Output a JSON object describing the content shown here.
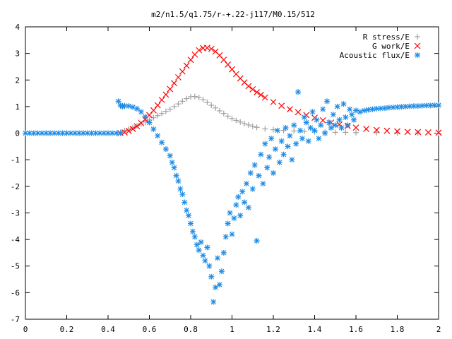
{
  "chart_data": {
    "type": "scatter",
    "title": "m2/n1.5/q1.75/r-+.22-j117/M0.15/512",
    "xlabel": "",
    "ylabel": "",
    "xlim": [
      0,
      2
    ],
    "ylim": [
      -7,
      4
    ],
    "xticks": [
      "0",
      "0.2",
      "0.4",
      "0.6",
      "0.8",
      "1",
      "1.2",
      "1.4",
      "1.6",
      "1.8",
      "2"
    ],
    "yticks": [
      "4",
      "3",
      "2",
      "1",
      "0",
      "-1",
      "-2",
      "-3",
      "-4",
      "-5",
      "-6",
      "-7"
    ],
    "grid": false,
    "legend_position": "top-right",
    "series": [
      {
        "name": "R stress/E",
        "marker": "plus",
        "color": "#a0a0a0",
        "points": [
          [
            0.46,
            0.03
          ],
          [
            0.48,
            0.1
          ],
          [
            0.5,
            0.16
          ],
          [
            0.52,
            0.22
          ],
          [
            0.54,
            0.28
          ],
          [
            0.56,
            0.35
          ],
          [
            0.58,
            0.42
          ],
          [
            0.6,
            0.5
          ],
          [
            0.62,
            0.58
          ],
          [
            0.64,
            0.66
          ],
          [
            0.66,
            0.74
          ],
          [
            0.68,
            0.82
          ],
          [
            0.7,
            0.9
          ],
          [
            0.72,
            1.0
          ],
          [
            0.74,
            1.1
          ],
          [
            0.76,
            1.2
          ],
          [
            0.78,
            1.3
          ],
          [
            0.8,
            1.37
          ],
          [
            0.82,
            1.38
          ],
          [
            0.84,
            1.34
          ],
          [
            0.86,
            1.26
          ],
          [
            0.88,
            1.16
          ],
          [
            0.9,
            1.05
          ],
          [
            0.92,
            0.95
          ],
          [
            0.94,
            0.84
          ],
          [
            0.96,
            0.74
          ],
          [
            0.98,
            0.64
          ],
          [
            1.0,
            0.55
          ],
          [
            1.02,
            0.48
          ],
          [
            1.04,
            0.42
          ],
          [
            1.06,
            0.36
          ],
          [
            1.08,
            0.31
          ],
          [
            1.1,
            0.26
          ],
          [
            1.12,
            0.22
          ],
          [
            1.16,
            0.16
          ],
          [
            1.2,
            0.13
          ],
          [
            1.25,
            0.1
          ],
          [
            1.3,
            0.08
          ],
          [
            1.35,
            0.07
          ],
          [
            1.4,
            0.05
          ],
          [
            1.45,
            0.04
          ],
          [
            1.5,
            0.03
          ],
          [
            1.55,
            0.03
          ],
          [
            1.6,
            0.02
          ],
          [
            1.7,
            0.02
          ],
          [
            1.8,
            0.01
          ],
          [
            1.9,
            0.01
          ],
          [
            2.0,
            0.0
          ]
        ]
      },
      {
        "name": "G work/E",
        "marker": "cross",
        "color": "#ff0000",
        "points": [
          [
            0.46,
            0.0
          ],
          [
            0.48,
            0.03
          ],
          [
            0.5,
            0.08
          ],
          [
            0.52,
            0.16
          ],
          [
            0.54,
            0.26
          ],
          [
            0.56,
            0.38
          ],
          [
            0.58,
            0.52
          ],
          [
            0.6,
            0.68
          ],
          [
            0.62,
            0.86
          ],
          [
            0.64,
            1.05
          ],
          [
            0.66,
            1.25
          ],
          [
            0.68,
            1.45
          ],
          [
            0.7,
            1.66
          ],
          [
            0.72,
            1.88
          ],
          [
            0.74,
            2.1
          ],
          [
            0.76,
            2.32
          ],
          [
            0.78,
            2.54
          ],
          [
            0.8,
            2.76
          ],
          [
            0.82,
            2.96
          ],
          [
            0.84,
            3.12
          ],
          [
            0.86,
            3.2
          ],
          [
            0.88,
            3.21
          ],
          [
            0.9,
            3.17
          ],
          [
            0.92,
            3.07
          ],
          [
            0.94,
            2.93
          ],
          [
            0.96,
            2.76
          ],
          [
            0.98,
            2.58
          ],
          [
            1.0,
            2.4
          ],
          [
            1.02,
            2.22
          ],
          [
            1.04,
            2.06
          ],
          [
            1.06,
            1.91
          ],
          [
            1.08,
            1.77
          ],
          [
            1.1,
            1.65
          ],
          [
            1.12,
            1.54
          ],
          [
            1.14,
            1.44
          ],
          [
            1.16,
            1.34
          ],
          [
            1.2,
            1.17
          ],
          [
            1.24,
            1.03
          ],
          [
            1.28,
            0.9
          ],
          [
            1.32,
            0.79
          ],
          [
            1.36,
            0.68
          ],
          [
            1.4,
            0.58
          ],
          [
            1.44,
            0.48
          ],
          [
            1.48,
            0.4
          ],
          [
            1.52,
            0.33
          ],
          [
            1.56,
            0.27
          ],
          [
            1.6,
            0.21
          ],
          [
            1.65,
            0.16
          ],
          [
            1.7,
            0.12
          ],
          [
            1.75,
            0.09
          ],
          [
            1.8,
            0.07
          ],
          [
            1.85,
            0.05
          ],
          [
            1.9,
            0.04
          ],
          [
            1.95,
            0.03
          ],
          [
            2.0,
            0.02
          ]
        ]
      },
      {
        "name": "Acoustic flux/E",
        "marker": "star",
        "color": "#1e8ce6",
        "points": [
          [
            0.0,
            0.0
          ],
          [
            0.02,
            0.0
          ],
          [
            0.04,
            0.0
          ],
          [
            0.06,
            0.0
          ],
          [
            0.08,
            0.0
          ],
          [
            0.1,
            0.0
          ],
          [
            0.12,
            0.0
          ],
          [
            0.14,
            0.0
          ],
          [
            0.16,
            0.0
          ],
          [
            0.18,
            0.0
          ],
          [
            0.2,
            0.0
          ],
          [
            0.22,
            0.0
          ],
          [
            0.24,
            0.0
          ],
          [
            0.26,
            0.0
          ],
          [
            0.28,
            0.0
          ],
          [
            0.3,
            0.0
          ],
          [
            0.32,
            0.0
          ],
          [
            0.34,
            0.0
          ],
          [
            0.36,
            0.0
          ],
          [
            0.38,
            0.0
          ],
          [
            0.4,
            0.0
          ],
          [
            0.42,
            0.0
          ],
          [
            0.44,
            0.0
          ],
          [
            0.46,
            0.0
          ],
          [
            0.45,
            1.2
          ],
          [
            0.46,
            1.05
          ],
          [
            0.47,
            1.0
          ],
          [
            0.48,
            1.03
          ],
          [
            0.5,
            1.02
          ],
          [
            0.52,
            0.98
          ],
          [
            0.54,
            0.92
          ],
          [
            0.56,
            0.8
          ],
          [
            0.58,
            0.62
          ],
          [
            0.6,
            0.4
          ],
          [
            0.62,
            0.15
          ],
          [
            0.64,
            -0.1
          ],
          [
            0.66,
            -0.35
          ],
          [
            0.68,
            -0.6
          ],
          [
            0.7,
            -0.85
          ],
          [
            0.71,
            -1.1
          ],
          [
            0.72,
            -1.3
          ],
          [
            0.73,
            -1.6
          ],
          [
            0.74,
            -1.8
          ],
          [
            0.75,
            -2.1
          ],
          [
            0.76,
            -2.3
          ],
          [
            0.77,
            -2.6
          ],
          [
            0.78,
            -2.9
          ],
          [
            0.79,
            -3.1
          ],
          [
            0.8,
            -3.4
          ],
          [
            0.81,
            -3.7
          ],
          [
            0.82,
            -3.9
          ],
          [
            0.83,
            -4.2
          ],
          [
            0.84,
            -4.4
          ],
          [
            0.85,
            -4.1
          ],
          [
            0.86,
            -4.6
          ],
          [
            0.87,
            -4.8
          ],
          [
            0.88,
            -4.3
          ],
          [
            0.89,
            -5.0
          ],
          [
            0.9,
            -5.4
          ],
          [
            0.91,
            -6.35
          ],
          [
            0.92,
            -5.8
          ],
          [
            0.93,
            -4.7
          ],
          [
            0.94,
            -5.7
          ],
          [
            0.95,
            -5.2
          ],
          [
            0.96,
            -4.5
          ],
          [
            0.97,
            -3.9
          ],
          [
            0.98,
            -3.4
          ],
          [
            0.99,
            -3.0
          ],
          [
            1.0,
            -3.8
          ],
          [
            1.01,
            -3.2
          ],
          [
            1.02,
            -2.7
          ],
          [
            1.03,
            -2.4
          ],
          [
            1.04,
            -3.1
          ],
          [
            1.05,
            -2.2
          ],
          [
            1.06,
            -2.6
          ],
          [
            1.07,
            -1.9
          ],
          [
            1.08,
            -2.8
          ],
          [
            1.09,
            -1.5
          ],
          [
            1.1,
            -2.1
          ],
          [
            1.11,
            -1.2
          ],
          [
            1.12,
            -4.05
          ],
          [
            1.13,
            -1.6
          ],
          [
            1.14,
            -0.8
          ],
          [
            1.15,
            -1.9
          ],
          [
            1.16,
            -0.4
          ],
          [
            1.17,
            -1.3
          ],
          [
            1.18,
            -0.9
          ],
          [
            1.19,
            -0.2
          ],
          [
            1.2,
            -1.5
          ],
          [
            1.21,
            -0.6
          ],
          [
            1.22,
            0.1
          ],
          [
            1.23,
            -1.1
          ],
          [
            1.24,
            -0.3
          ],
          [
            1.25,
            -0.8
          ],
          [
            1.26,
            0.2
          ],
          [
            1.27,
            -0.5
          ],
          [
            1.28,
            -0.1
          ],
          [
            1.29,
            -1.0
          ],
          [
            1.3,
            0.3
          ],
          [
            1.31,
            -0.4
          ],
          [
            1.32,
            1.55
          ],
          [
            1.33,
            0.1
          ],
          [
            1.34,
            -0.2
          ],
          [
            1.35,
            0.6
          ],
          [
            1.36,
            0.4
          ],
          [
            1.37,
            -0.3
          ],
          [
            1.38,
            0.2
          ],
          [
            1.39,
            0.8
          ],
          [
            1.4,
            0.1
          ],
          [
            1.41,
            0.5
          ],
          [
            1.42,
            -0.2
          ],
          [
            1.43,
            0.3
          ],
          [
            1.44,
            0.9
          ],
          [
            1.45,
            0.0
          ],
          [
            1.46,
            1.2
          ],
          [
            1.47,
            0.4
          ],
          [
            1.48,
            0.2
          ],
          [
            1.49,
            0.7
          ],
          [
            1.5,
            0.3
          ],
          [
            1.51,
            1.0
          ],
          [
            1.52,
            0.5
          ],
          [
            1.53,
            0.2
          ],
          [
            1.54,
            1.1
          ],
          [
            1.55,
            0.6
          ],
          [
            1.56,
            0.3
          ],
          [
            1.57,
            0.9
          ],
          [
            1.58,
            0.7
          ],
          [
            1.59,
            0.5
          ],
          [
            1.6,
            0.85
          ],
          [
            1.62,
            0.8
          ],
          [
            1.64,
            0.85
          ],
          [
            1.66,
            0.88
          ],
          [
            1.68,
            0.9
          ],
          [
            1.7,
            0.92
          ],
          [
            1.72,
            0.93
          ],
          [
            1.74,
            0.94
          ],
          [
            1.76,
            0.96
          ],
          [
            1.78,
            0.97
          ],
          [
            1.8,
            0.98
          ],
          [
            1.82,
            0.99
          ],
          [
            1.84,
            1.0
          ],
          [
            1.86,
            1.01
          ],
          [
            1.88,
            1.02
          ],
          [
            1.9,
            1.02
          ],
          [
            1.92,
            1.03
          ],
          [
            1.94,
            1.04
          ],
          [
            1.96,
            1.04
          ],
          [
            1.98,
            1.05
          ],
          [
            2.0,
            1.05
          ]
        ]
      }
    ]
  }
}
